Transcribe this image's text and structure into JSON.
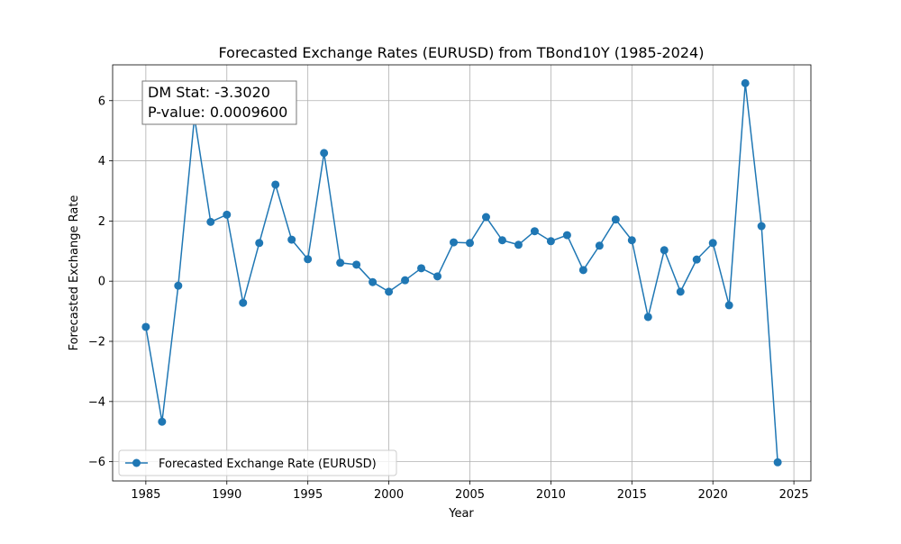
{
  "chart_data": {
    "type": "line",
    "title": "Forecasted Exchange Rates (EURUSD) from TBond10Y (1985-2024)",
    "xlabel": "Year",
    "ylabel": "Forecasted Exchange Rate",
    "xlim": [
      1982.95,
      2026.05
    ],
    "ylim": [
      -6.64,
      7.19
    ],
    "xticks": [
      1985,
      1990,
      1995,
      2000,
      2005,
      2010,
      2015,
      2020,
      2025
    ],
    "yticks": [
      -6,
      -4,
      -2,
      0,
      2,
      4,
      6
    ],
    "xtick_labels": [
      "1985",
      "1990",
      "1995",
      "2000",
      "2005",
      "2010",
      "2015",
      "2020",
      "2025"
    ],
    "ytick_labels": [
      "−6",
      "−4",
      "−2",
      "0",
      "2",
      "4",
      "6"
    ],
    "grid": true,
    "legend_position": "lower-left",
    "color": "#1f77b4",
    "annotation": {
      "line1": "DM Stat: -3.3020",
      "line2": "P-value: 0.0009600"
    },
    "series": [
      {
        "name": "Forecasted Exchange Rate (EURUSD)",
        "x": [
          1985,
          1986,
          1987,
          1988,
          1989,
          1990,
          1991,
          1992,
          1993,
          1994,
          1995,
          1996,
          1997,
          1998,
          1999,
          2000,
          2001,
          2002,
          2003,
          2004,
          2005,
          2006,
          2007,
          2008,
          2009,
          2010,
          2011,
          2012,
          2013,
          2014,
          2015,
          2016,
          2017,
          2018,
          2019,
          2020,
          2021,
          2022,
          2023,
          2024
        ],
        "values": [
          -1.52,
          -4.67,
          -0.15,
          5.45,
          1.97,
          2.21,
          -0.72,
          1.27,
          3.21,
          1.38,
          0.73,
          4.26,
          0.61,
          0.55,
          -0.03,
          -0.35,
          0.03,
          0.43,
          0.16,
          1.29,
          1.27,
          2.13,
          1.36,
          1.21,
          1.66,
          1.33,
          1.53,
          0.37,
          1.18,
          2.05,
          1.36,
          -1.19,
          1.03,
          -0.35,
          0.72,
          1.27,
          -0.8,
          6.58,
          1.83,
          -6.02
        ]
      }
    ]
  }
}
